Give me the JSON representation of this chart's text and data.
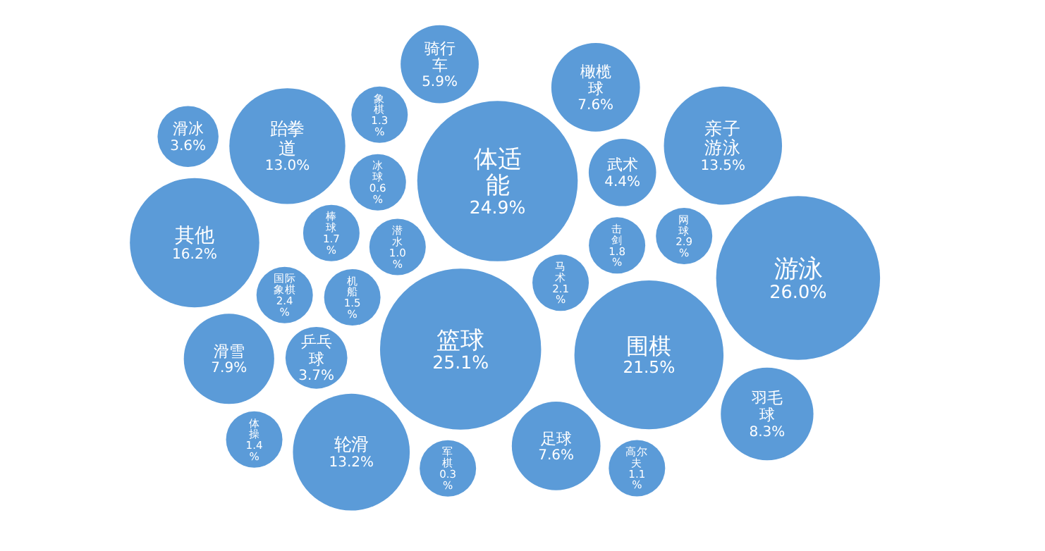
{
  "chart_data": {
    "type": "other",
    "color": "#5b9bd8",
    "categories": [
      "游泳",
      "篮球",
      "体适能",
      "围棋",
      "其他",
      "亲子游泳",
      "轮滑",
      "跆拳道",
      "羽毛球",
      "滑雪",
      "橄榄球",
      "足球",
      "骑行车",
      "武术",
      "乒乓球",
      "滑冰",
      "网球",
      "国际象棋",
      "马术",
      "击剑",
      "棒球",
      "机船",
      "体操",
      "象棋",
      "高尔夫",
      "潜水",
      "冰球",
      "军棋"
    ],
    "values": [
      26.0,
      25.1,
      24.9,
      21.5,
      16.2,
      13.5,
      13.2,
      13.0,
      8.3,
      7.9,
      7.6,
      7.6,
      5.9,
      4.4,
      3.7,
      3.6,
      2.9,
      2.4,
      2.1,
      1.8,
      1.7,
      1.5,
      1.4,
      1.3,
      1.1,
      1.0,
      0.6,
      0.3
    ],
    "value_labels": [
      "26.0%",
      "25.1%",
      "24.9%",
      "21.5%",
      "16.2%",
      "13.5%",
      "13.2%",
      "13.0%",
      "8.3%",
      "7.9%",
      "7.6%",
      "7.6%",
      "5.9%",
      "4.4%",
      "3.7%",
      "3.6%",
      "2.9%",
      "2.4%",
      "2.1%",
      "1.8%",
      "1.7%",
      "1.5%",
      "1.4%",
      "1.3%",
      "1.1%",
      "1.0%",
      "0.6%",
      "0.3%"
    ]
  }
}
